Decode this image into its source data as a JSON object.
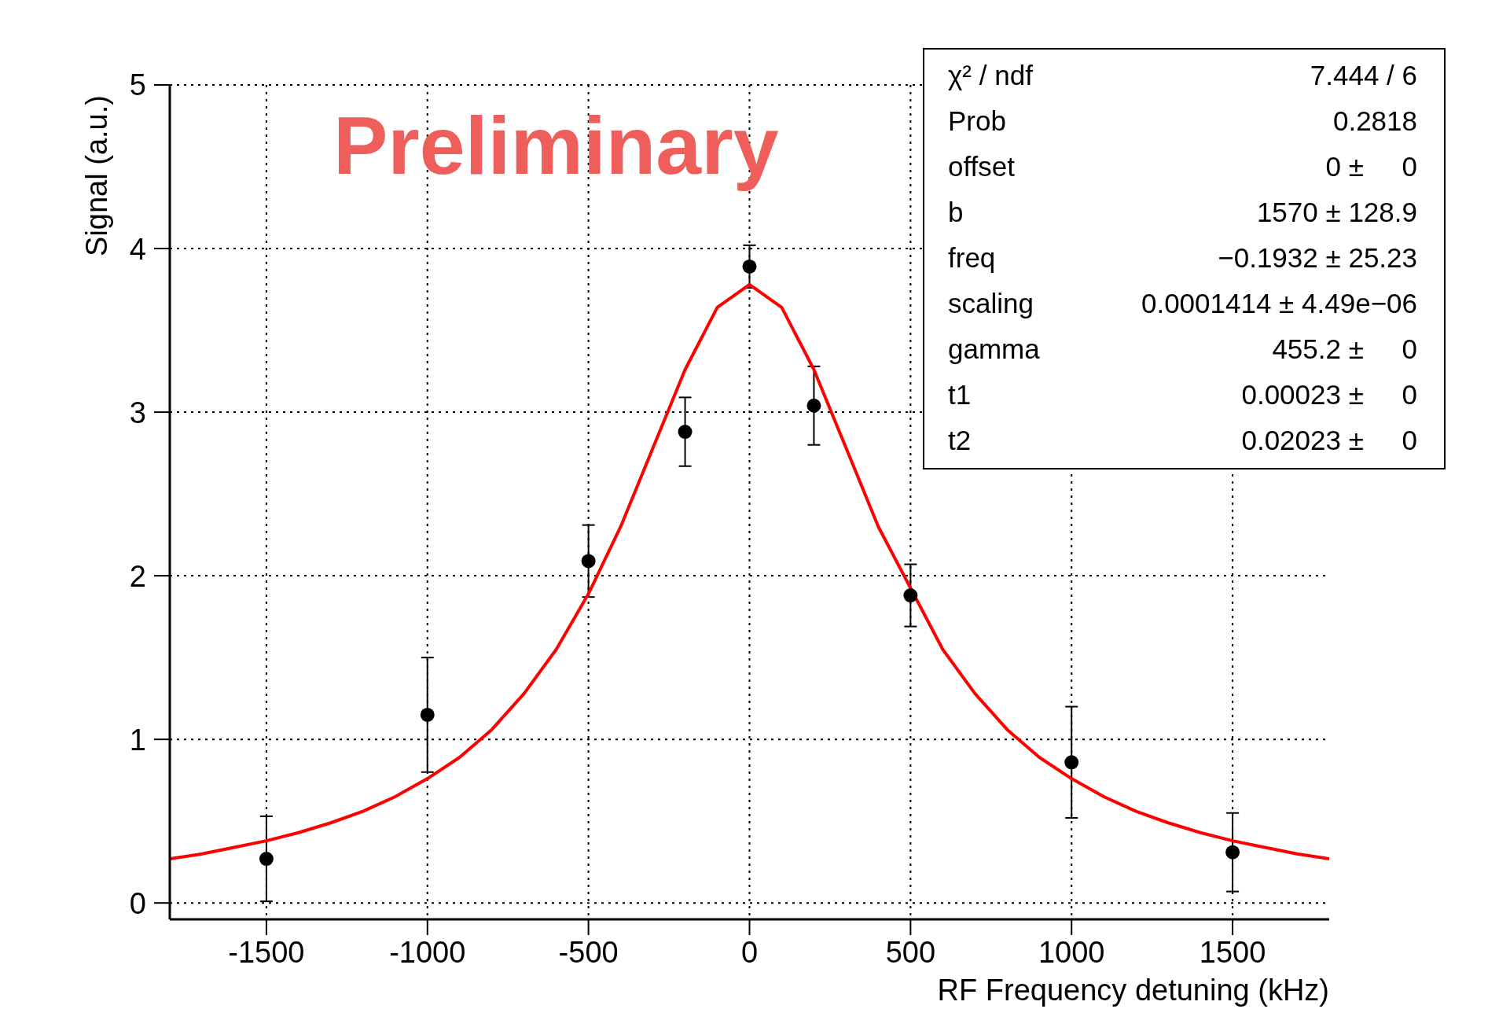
{
  "chart_data": {
    "type": "scatter",
    "xlabel": "RF Frequency detuning (kHz)",
    "ylabel": "Signal (a.u.)",
    "x": [
      -1500,
      -1000,
      -500,
      -200,
      0,
      200,
      500,
      1000,
      1500
    ],
    "series": [
      {
        "color": "#000000",
        "values": [
          0.27,
          1.15,
          2.09,
          2.88,
          3.89,
          3.04,
          1.88,
          0.86,
          0.31
        ],
        "errors": [
          0.26,
          0.35,
          0.22,
          0.21,
          0.13,
          0.24,
          0.19,
          0.34,
          0.24
        ]
      },
      {
        "type": "line",
        "color": "#ff0000",
        "x": [
          -1800,
          -1700,
          -1600,
          -1500,
          -1400,
          -1300,
          -1200,
          -1100,
          -1000,
          -900,
          -800,
          -700,
          -600,
          -500,
          -400,
          -300,
          -200,
          -100,
          0,
          100,
          200,
          300,
          400,
          600,
          700,
          800,
          900,
          1000,
          1100,
          1200,
          1300,
          1400,
          1500,
          1600,
          1700,
          1800
        ],
        "values": [
          0.27,
          0.3,
          0.34,
          0.38,
          0.43,
          0.49,
          0.56,
          0.65,
          0.76,
          0.89,
          1.06,
          1.28,
          1.55,
          1.89,
          2.3,
          2.78,
          3.26,
          3.64,
          3.78,
          3.64,
          3.26,
          2.78,
          2.3,
          1.55,
          1.28,
          1.06,
          0.89,
          0.76,
          0.65,
          0.56,
          0.49,
          0.43,
          0.38,
          0.34,
          0.3,
          0.27
        ]
      }
    ],
    "xlim": [
      -1800,
      1800
    ],
    "xticks": [
      -1500,
      -1000,
      -500,
      0,
      500,
      1000,
      1500
    ],
    "ylim": [
      -0.1,
      5
    ],
    "yticks": [
      0,
      1,
      2,
      3,
      4,
      5
    ],
    "grid": true,
    "annotations": [
      "Preliminary",
      "χ² / ndf",
      "7.444 / 6",
      "Prob",
      "0.2818",
      "offset",
      "0 ±     0",
      "b",
      "1570 ± 128.9",
      "freq",
      "−0.1932 ± 25.23",
      "scaling",
      "0.0001414 ± 4.49e−06",
      "gamma",
      "455.2 ±     0",
      "t1",
      "0.00023 ±     0",
      "t2",
      "0.02023 ±     0"
    ]
  }
}
